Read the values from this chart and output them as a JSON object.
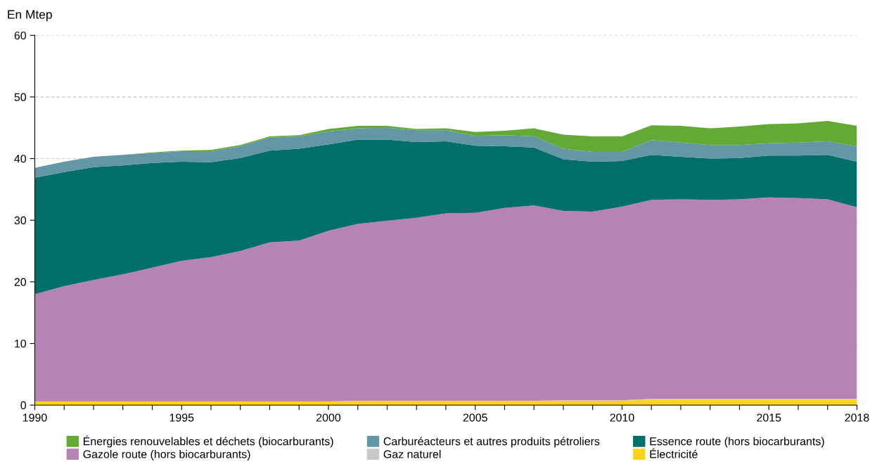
{
  "chart_data": {
    "type": "area",
    "stacked": true,
    "ylabel": "En Mtep",
    "x": [
      1990,
      1991,
      1992,
      1993,
      1994,
      1995,
      1996,
      1997,
      1998,
      1999,
      2000,
      2001,
      2002,
      2003,
      2004,
      2005,
      2006,
      2007,
      2008,
      2009,
      2010,
      2011,
      2012,
      2013,
      2014,
      2015,
      2016,
      2017,
      2018
    ],
    "series": [
      {
        "name": "Électricité",
        "color": "#f9d31c",
        "values": [
          0.6,
          0.6,
          0.6,
          0.6,
          0.6,
          0.6,
          0.6,
          0.6,
          0.6,
          0.6,
          0.6,
          0.7,
          0.7,
          0.7,
          0.7,
          0.7,
          0.7,
          0.7,
          0.7,
          0.7,
          0.7,
          0.9,
          0.9,
          0.9,
          0.9,
          0.9,
          0.9,
          0.9,
          0.9
        ]
      },
      {
        "name": "Gaz naturel",
        "color": "#c8c8c8",
        "values": [
          0,
          0,
          0,
          0,
          0,
          0,
          0,
          0,
          0,
          0,
          0,
          0,
          0,
          0,
          0,
          0,
          0,
          0,
          0.1,
          0.1,
          0.1,
          0.1,
          0.1,
          0.1,
          0.1,
          0.1,
          0.1,
          0.1,
          0.1
        ]
      },
      {
        "name": "Gazole route (hors biocarburants)",
        "color": "#b584b2",
        "values": [
          17.4,
          18.7,
          19.7,
          20.6,
          21.7,
          22.8,
          23.4,
          24.4,
          25.8,
          26.1,
          27.7,
          28.7,
          29.2,
          29.7,
          30.4,
          30.5,
          31.3,
          31.7,
          30.7,
          30.6,
          31.4,
          32.3,
          32.4,
          32.3,
          32.4,
          32.7,
          32.6,
          32.4,
          31.1
        ]
      },
      {
        "name": "Essence route (hors biocarburants)",
        "color": "#006f68",
        "values": [
          18.9,
          18.5,
          18.3,
          17.7,
          17.0,
          16.1,
          15.4,
          15.1,
          14.9,
          14.9,
          14.0,
          13.7,
          13.2,
          12.3,
          11.7,
          10.9,
          10.0,
          9.4,
          8.4,
          8.1,
          7.4,
          7.3,
          6.9,
          6.7,
          6.7,
          6.8,
          6.9,
          7.2,
          7.4
        ]
      },
      {
        "name": "Carburéacteurs et autres produits pétroliers",
        "color": "#6497a5",
        "values": [
          1.6,
          1.7,
          1.7,
          1.7,
          1.6,
          1.7,
          1.8,
          1.9,
          2.1,
          2.0,
          2.1,
          1.8,
          1.9,
          1.9,
          1.8,
          1.6,
          1.8,
          1.8,
          1.7,
          1.6,
          1.5,
          2.4,
          2.3,
          2.2,
          2.1,
          2.0,
          2.1,
          2.2,
          2.5
        ]
      },
      {
        "name": "Énergies renouvelables et déchets (biocarburants)",
        "color": "#62aa35",
        "values": [
          0,
          0,
          0,
          0,
          0.1,
          0.1,
          0.2,
          0.2,
          0.2,
          0.2,
          0.4,
          0.4,
          0.3,
          0.2,
          0.3,
          0.6,
          0.7,
          1.3,
          2.3,
          2.5,
          2.5,
          2.4,
          2.7,
          2.7,
          3.0,
          3.1,
          3.1,
          3.3,
          3.3
        ]
      }
    ],
    "xlim": [
      1990,
      2018
    ],
    "xticks": [
      1990,
      {
        "value": 1991,
        "label": null
      },
      {
        "value": 1992,
        "label": null
      },
      {
        "value": 1993,
        "label": null
      },
      {
        "value": 1994,
        "label": null
      },
      1995,
      {
        "value": 1996,
        "label": null
      },
      {
        "value": 1997,
        "label": null
      },
      {
        "value": 1998,
        "label": null
      },
      {
        "value": 1999,
        "label": null
      },
      2000,
      {
        "value": 2001,
        "label": null
      },
      {
        "value": 2002,
        "label": null
      },
      {
        "value": 2003,
        "label": null
      },
      {
        "value": 2004,
        "label": null
      },
      2005,
      {
        "value": 2006,
        "label": null
      },
      {
        "value": 2007,
        "label": null
      },
      {
        "value": 2008,
        "label": null
      },
      {
        "value": 2009,
        "label": null
      },
      2010,
      {
        "value": 2011,
        "label": null
      },
      {
        "value": 2012,
        "label": null
      },
      {
        "value": 2013,
        "label": null
      },
      {
        "value": 2014,
        "label": null
      },
      2015,
      {
        "value": 2016,
        "label": null
      },
      {
        "value": 2017,
        "label": null
      },
      2018
    ],
    "ylim": [
      0,
      60
    ],
    "yticks": [
      0,
      10,
      20,
      30,
      40,
      50,
      60
    ],
    "grid": "y",
    "legend": "bottom"
  }
}
